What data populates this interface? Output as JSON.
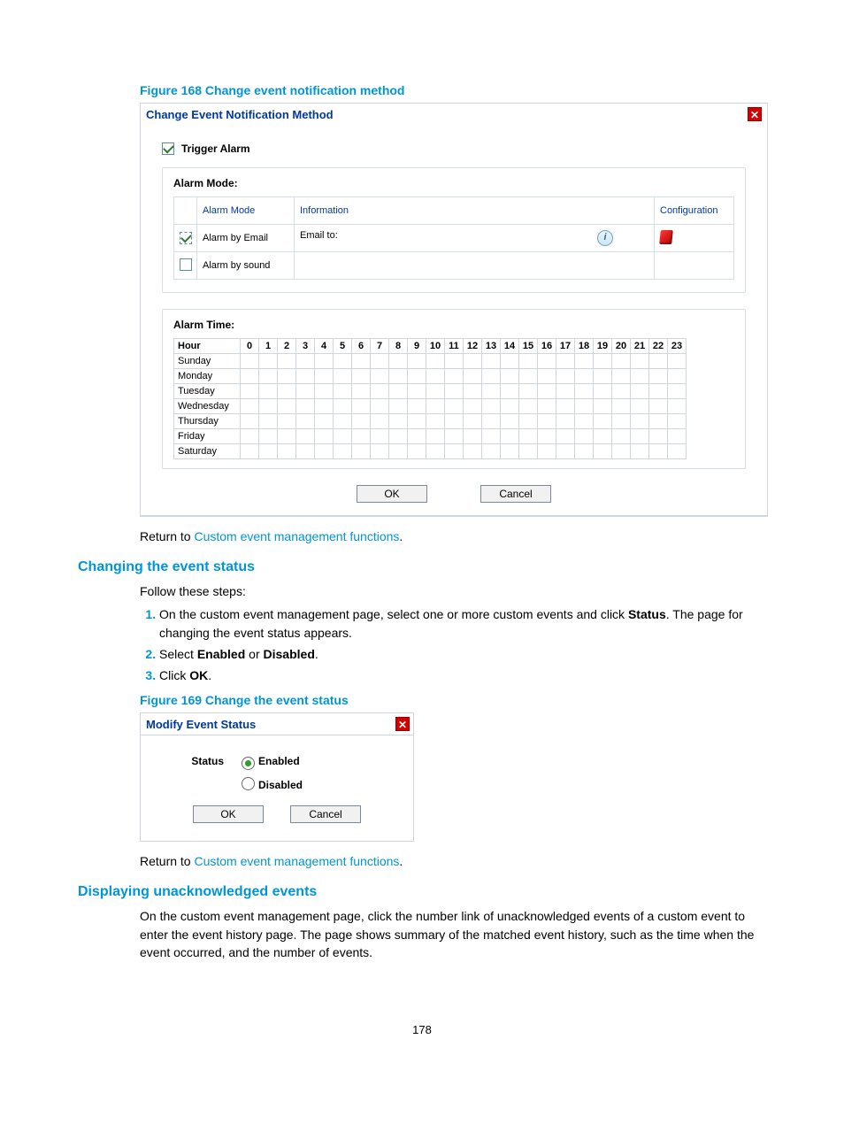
{
  "page_number": "178",
  "figure168": {
    "caption": "Figure 168 Change event notification method",
    "dialog_title": "Change Event Notification Method",
    "trigger_alarm_label": "Trigger Alarm",
    "trigger_alarm_checked": true,
    "alarm_mode_label": "Alarm Mode:",
    "alarm_mode_table": {
      "headers": {
        "mode": "Alarm Mode",
        "info": "Information",
        "conf": "Configuration"
      },
      "rows": [
        {
          "checked": true,
          "mode": "Alarm by Email",
          "info": "Email to:"
        },
        {
          "checked": false,
          "mode": "Alarm by sound",
          "info": ""
        }
      ]
    },
    "alarm_time_label": "Alarm Time:",
    "alarm_time": {
      "hour_header": "Hour",
      "hours": [
        "0",
        "1",
        "2",
        "3",
        "4",
        "5",
        "6",
        "7",
        "8",
        "9",
        "10",
        "11",
        "12",
        "13",
        "14",
        "15",
        "16",
        "17",
        "18",
        "19",
        "20",
        "21",
        "22",
        "23"
      ],
      "days": [
        "Sunday",
        "Monday",
        "Tuesday",
        "Wednesday",
        "Thursday",
        "Friday",
        "Saturday"
      ]
    },
    "buttons": {
      "ok": "OK",
      "cancel": "Cancel"
    }
  },
  "return1": {
    "prefix": "Return to ",
    "link": "Custom event management functions",
    "suffix": "."
  },
  "section_change_status": {
    "heading": "Changing the event status",
    "intro": "Follow these steps:",
    "steps": [
      {
        "pre": "On the custom event management page, select one or more custom events and click ",
        "b1": "Status",
        "post": ". The page for changing the event status appears."
      },
      {
        "pre": "Select ",
        "b1": "Enabled",
        "mid": " or ",
        "b2": "Disabled",
        "post": "."
      },
      {
        "pre": "Click ",
        "b1": "OK",
        "post": "."
      }
    ]
  },
  "figure169": {
    "caption": "Figure 169 Change the event status",
    "dialog_title": "Modify Event Status",
    "status_label": "Status",
    "options": {
      "enabled": "Enabled",
      "disabled": "Disabled"
    },
    "buttons": {
      "ok": "OK",
      "cancel": "Cancel"
    }
  },
  "return2": {
    "prefix": "Return to ",
    "link": "Custom event management functions",
    "suffix": "."
  },
  "section_unack": {
    "heading": "Displaying unacknowledged events",
    "body": "On the custom event management page, click the number link of unacknowledged events of a custom event to enter the event history page. The page shows summary of the matched event history, such as the time when the event occurred, and the number of events."
  },
  "colors": {
    "accent": "#0096d6",
    "dialog_title": "#003a9c",
    "close_bg": "#d40000",
    "border": "#cfd6dc"
  }
}
